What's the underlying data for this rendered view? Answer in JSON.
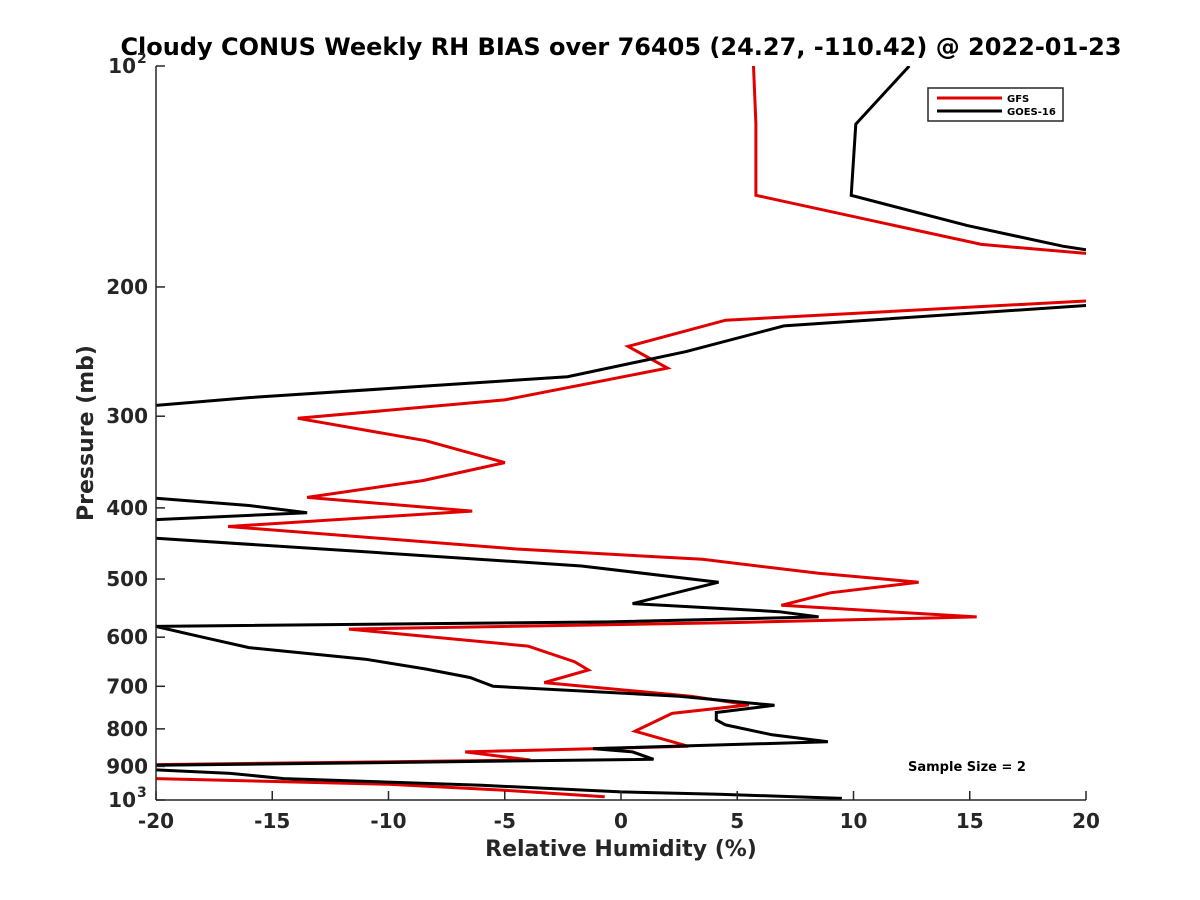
{
  "chart_data": {
    "type": "line",
    "title": "Cloudy CONUS Weekly RH BIAS over 76405 (24.27, -110.42) @ 2022-01-23",
    "xlabel": "Relative Humidity (%)",
    "ylabel": "Pressure (mb)",
    "xlim": [
      -20,
      20
    ],
    "ylim": [
      100,
      1000
    ],
    "yscale": "log",
    "y_reversed": true,
    "x_ticks": [
      "-20",
      "-15",
      "-10",
      "-5",
      "0",
      "5",
      "10",
      "15",
      "20"
    ],
    "y_ticks": [
      {
        "value": 100,
        "base": "10",
        "exp": "2"
      },
      {
        "value": 200,
        "label": "200"
      },
      {
        "value": 300,
        "label": "300"
      },
      {
        "value": 400,
        "label": "400"
      },
      {
        "value": 500,
        "label": "500"
      },
      {
        "value": 600,
        "label": "600"
      },
      {
        "value": 700,
        "label": "700"
      },
      {
        "value": 800,
        "label": "800"
      },
      {
        "value": 900,
        "label": "900"
      },
      {
        "value": 1000,
        "base": "10",
        "exp": "3"
      }
    ],
    "legend_position": "top-right",
    "grid": false,
    "annotation": "Sample Size = 2",
    "series": [
      {
        "name": "GFS",
        "color": "#e00000",
        "points": [
          [
            5.7,
            100
          ],
          [
            5.8,
            120
          ],
          [
            5.8,
            150
          ],
          [
            15.5,
            175
          ],
          [
            20,
            180
          ],
          [
            null,
            null
          ],
          [
            20,
            209
          ],
          [
            4.5,
            222
          ],
          [
            0.3,
            241
          ],
          [
            2.0,
            258
          ],
          [
            -5.0,
            285
          ],
          [
            -13.9,
            302
          ],
          [
            -8.4,
            324
          ],
          [
            -5.0,
            347
          ],
          [
            -8.5,
            367
          ],
          [
            -13.5,
            387
          ],
          [
            -6.4,
            404
          ],
          [
            -16.9,
            424
          ],
          [
            -4.5,
            455
          ],
          [
            3.5,
            470
          ],
          [
            8.5,
            491
          ],
          [
            12.8,
            505
          ],
          [
            9.0,
            522
          ],
          [
            6.9,
            543
          ],
          [
            15.3,
            563
          ],
          [
            5.0,
            573
          ],
          [
            -11.7,
            585
          ],
          [
            -4.0,
            617
          ],
          [
            -2.0,
            648
          ],
          [
            -1.4,
            665
          ],
          [
            -3.3,
            692
          ],
          [
            3.0,
            722
          ],
          [
            5.5,
            742
          ],
          [
            2.2,
            762
          ],
          [
            0.6,
            806
          ],
          [
            2.9,
            845
          ],
          [
            -6.7,
            860
          ],
          [
            -3.9,
            882
          ],
          [
            -20,
            895
          ],
          [
            null,
            null
          ],
          [
            -20,
            935
          ],
          [
            -10.0,
            952
          ],
          [
            -5.0,
            970
          ],
          [
            -0.7,
            990
          ]
        ]
      },
      {
        "name": "GOES-16",
        "color": "#000000",
        "points": [
          [
            12.4,
            100
          ],
          [
            10.1,
            120
          ],
          [
            9.9,
            150
          ],
          [
            14.9,
            165
          ],
          [
            19.0,
            176
          ],
          [
            20,
            178
          ],
          [
            null,
            null
          ],
          [
            20,
            212
          ],
          [
            7.0,
            226
          ],
          [
            2.8,
            245
          ],
          [
            -2.3,
            265
          ],
          [
            -9.2,
            274
          ],
          [
            -16.0,
            283
          ],
          [
            -20,
            290
          ],
          [
            null,
            null
          ],
          [
            -20,
            388
          ],
          [
            -16.0,
            397
          ],
          [
            -13.5,
            406
          ],
          [
            -20,
            415
          ],
          [
            null,
            null
          ],
          [
            -20,
            440
          ],
          [
            -11.0,
            459
          ],
          [
            -1.7,
            480
          ],
          [
            4.2,
            505
          ],
          [
            0.5,
            540
          ],
          [
            6.8,
            554
          ],
          [
            8.5,
            563
          ],
          [
            -0.5,
            572
          ],
          [
            -20,
            580
          ],
          [
            -18.3,
            597
          ],
          [
            -16.0,
            620
          ],
          [
            -11.0,
            643
          ],
          [
            -8.4,
            663
          ],
          [
            -6.5,
            681
          ],
          [
            -5.5,
            700
          ],
          [
            2.5,
            722
          ],
          [
            6.6,
            743
          ],
          [
            4.1,
            760
          ],
          [
            4.1,
            778
          ],
          [
            4.5,
            790
          ],
          [
            6.5,
            815
          ],
          [
            8.9,
            833
          ],
          [
            -1.2,
            851
          ],
          [
            0.5,
            860
          ],
          [
            1.4,
            880
          ],
          [
            -20,
            897
          ],
          [
            null,
            null
          ],
          [
            -20,
            910
          ],
          [
            -16.8,
            920
          ],
          [
            -14.5,
            935
          ],
          [
            -6.0,
            955
          ],
          [
            0.0,
            975
          ],
          [
            4.2,
            982
          ],
          [
            9.5,
            995
          ]
        ]
      }
    ]
  }
}
